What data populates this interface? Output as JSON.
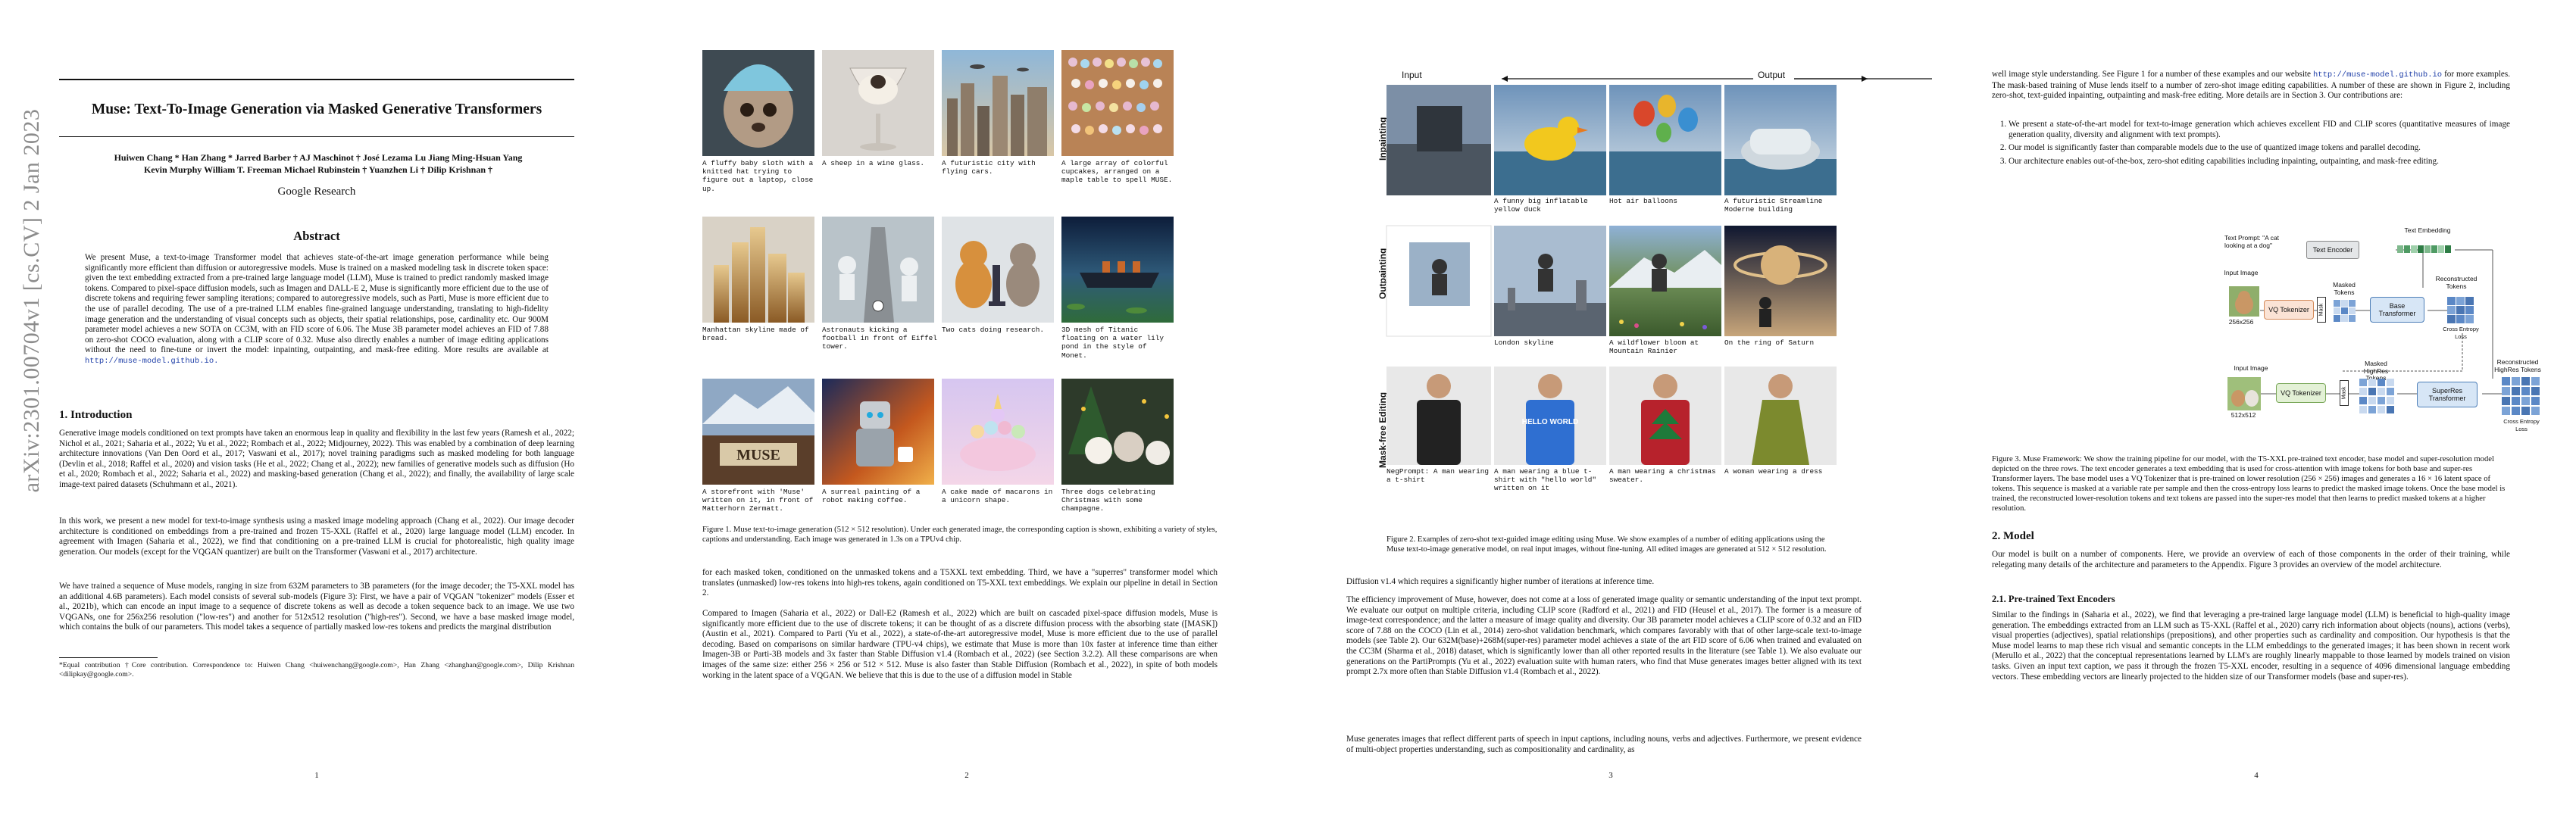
{
  "arxiv_stamp": "arXiv:2301.00704v1  [cs.CV]  2 Jan 2023",
  "page1": {
    "title": "Muse: Text-To-Image Generation via Masked Generative Transformers",
    "authors_line1": "Huiwen Chang * Han Zhang * Jarred Barber † AJ Maschinot † José Lezama Lu Jiang Ming-Hsuan Yang",
    "authors_line2": "Kevin Murphy William T. Freeman Michael Rubinstein † Yuanzhen Li † Dilip Krishnan †",
    "affiliation": "Google Research",
    "abstract_heading": "Abstract",
    "abstract": "We present Muse, a text-to-image Transformer model that achieves state-of-the-art image generation performance while being significantly more efficient than diffusion or autoregressive models. Muse is trained on a masked modeling task in discrete token space: given the text embedding extracted from a pre-trained large language model (LLM), Muse is trained to predict randomly masked image tokens. Compared to pixel-space diffusion models, such as Imagen and DALL-E 2, Muse is significantly more efficient due to the use of discrete tokens and requiring fewer sampling iterations; compared to autoregressive models, such as Parti, Muse is more efficient due to the use of parallel decoding. The use of a pre-trained LLM enables fine-grained language understanding, translating to high-fidelity image generation and the understanding of visual concepts such as objects, their spatial relationships, pose, cardinality etc. Our 900M parameter model achieves a new SOTA on CC3M, with an FID score of 6.06. The Muse 3B parameter model achieves an FID of 7.88 on zero-shot COCO evaluation, along with a CLIP score of 0.32. Muse also directly enables a number of image editing applications without the need to fine-tune or invert the model: inpainting, outpainting, and mask-free editing. More results are available at",
    "abstract_link": "http://muse-model.github.io.",
    "intro_heading": "1. Introduction",
    "intro_p1": "Generative image models conditioned on text prompts have taken an enormous leap in quality and flexibility in the last few years (Ramesh et al., 2022; Nichol et al., 2021; Saharia et al., 2022; Yu et al., 2022; Rombach et al., 2022; Midjourney, 2022). This was enabled by a combination of deep learning architecture innovations (Van Den Oord et al., 2017; Vaswani et al., 2017); novel training paradigms such as masked modeling for both language (Devlin et al., 2018; Raffel et al., 2020) and vision tasks (He et al., 2022; Chang et al., 2022); new families of generative models such as diffusion (Ho et al., 2020; Rombach et al., 2022; Saharia et al., 2022) and masking-based generation (Chang et al., 2022); and finally, the availability of large scale image-text paired datasets (Schuhmann et al., 2021).",
    "intro_p2": "In this work, we present a new model for text-to-image synthesis using a masked image modeling approach (Chang et al., 2022). Our image decoder architecture is conditioned on embeddings from a pre-trained and frozen T5-XXL (Raffel et al., 2020) large language model (LLM) encoder. In agreement with Imagen (Saharia et al., 2022), we find that conditioning on a pre-trained LLM is crucial for photorealistic, high quality image generation. Our models (except for the VQGAN quantizer) are built on the Transformer (Vaswani et al., 2017) architecture.",
    "intro_p3": "We have trained a sequence of Muse models, ranging in size from 632M parameters to 3B parameters (for the image decoder; the T5-XXL model has an additional 4.6B parameters). Each model consists of several sub-models (Figure 3): First, we have a pair of VQGAN \"tokenizer\" models (Esser et al., 2021b), which can encode an input image to a sequence of discrete tokens as well as decode a token sequence back to an image. We use two VQGANs, one for 256x256 resolution (\"low-res\") and another for 512x512 resolution (\"high-res\"). Second, we have a base masked image model, which contains the bulk of our parameters. This model takes a sequence of partially masked low-res tokens and predicts the marginal distribution",
    "footnote": "*Equal contribution †Core contribution. Correspondence to: Huiwen Chang <huiwenchang@google.com>, Han Zhang <zhanghan@google.com>, Dilip Krishnan <dilipkay@google.com>.",
    "page_number": "1"
  },
  "page2": {
    "tiles": [
      {
        "caption": "A fluffy baby sloth with a knitted hat trying to figure out a laptop, close up."
      },
      {
        "caption": "A sheep in a wine glass."
      },
      {
        "caption": "A futuristic city with flying cars."
      },
      {
        "caption": "A large array of colorful cupcakes, arranged on a maple table to spell MUSE."
      },
      {
        "caption": "Manhattan skyline made of bread."
      },
      {
        "caption": "Astronauts kicking a football in front of Eiffel tower."
      },
      {
        "caption": "Two cats doing research."
      },
      {
        "caption": "3D mesh of Titanic floating on a water lily pond in the style of Monet."
      },
      {
        "caption": "A storefront with 'Muse' written on it, in front of Matterhorn Zermatt."
      },
      {
        "caption": "A surreal painting of a robot making coffee."
      },
      {
        "caption": "A cake made of macarons in a unicorn shape."
      },
      {
        "caption": "Three dogs celebrating Christmas with some champagne."
      }
    ],
    "muse_sign": "MUSE",
    "figure_caption": "Figure 1. Muse text-to-image generation (512 × 512 resolution). Under each generated image, the corresponding caption is shown, exhibiting a variety of styles, captions and understanding. Each image was generated in 1.3s on a TPUv4 chip.",
    "body_p1": "for each masked token, conditioned on the unmasked tokens and a T5XXL text embedding. Third, we have a \"superres\" transformer model which translates (unmasked) low-res tokens into high-res tokens, again conditioned on T5-XXL text embeddings. We explain our pipeline in detail in Section 2.",
    "body_p2": "Compared to Imagen (Saharia et al., 2022) or Dall-E2 (Ramesh et al., 2022) which are built on cascaded pixel-space diffusion models, Muse is significantly more efficient due to the use of discrete tokens; it can be thought of as a discrete diffusion process with the absorbing state ([MASK]) (Austin et al., 2021). Compared to Parti (Yu et al., 2022), a state-of-the-art autoregressive model, Muse is more efficient due to the use of parallel decoding. Based on comparisons on similar hardware (TPU-v4 chips), we estimate that Muse is more than 10x faster at inference time than either Imagen-3B or Parti-3B models and 3x faster than Stable Diffusion v1.4 (Rombach et al., 2022) (see Section 3.2.2). All these comparisons are when images of the same size: either 256 × 256 or 512 × 512. Muse is also faster than Stable Diffusion (Rombach et al., 2022), in spite of both models working in the latent space of a VQGAN. We believe that this is due to the use of a diffusion model in Stable",
    "page_number": "2"
  },
  "page3": {
    "input_label": "Input",
    "output_label": "Output",
    "row_labels": [
      "Inpainting",
      "Outpainting",
      "Mask-free Editing"
    ],
    "row1_captions": [
      "",
      "A funny big inflatable yellow duck",
      "Hot air balloons",
      "A futuristic Streamline Moderne building"
    ],
    "row2_captions": [
      "",
      "London skyline",
      "A wildflower bloom at Mountain Rainier",
      "On the ring of Saturn"
    ],
    "row3_captions": [
      "NegPrompt: A man wearing a t-shirt",
      "A man wearing a blue t-shirt with \"hello world\" written on it",
      "A man wearing a christmas sweater.",
      "A woman wearing a dress"
    ],
    "hello_shirt": "HELLO WORLD",
    "figure_caption": "Figure 2. Examples of zero-shot text-guided image editing using Muse. We show examples of a number of editing applications using the Muse text-to-image generative model, on real input images, without fine-tuning. All edited images are generated at 512 × 512 resolution.",
    "body_p1": "Diffusion v1.4 which requires a significantly higher number of iterations at inference time.",
    "body_p2": "The efficiency improvement of Muse, however, does not come at a loss of generated image quality or semantic understanding of the input text prompt. We evaluate our output on multiple criteria, including CLIP score (Radford et al., 2021) and FID (Heusel et al., 2017). The former is a measure of image-text correspondence; and the latter a measure of image quality and diversity. Our 3B parameter model achieves a CLIP score of 0.32 and an FID score of 7.88 on the COCO (Lin et al., 2014) zero-shot validation benchmark, which compares favorably with that of other large-scale text-to-image models (see Table 2). Our 632M(base)+268M(super-res) parameter model achieves a state of the art FID score of 6.06 when trained and evaluated on the CC3M (Sharma et al., 2018) dataset, which is significantly lower than all other reported results in the literature (see Table 1). We also evaluate our generations on the PartiPrompts (Yu et al., 2022) evaluation suite with human raters, who find that Muse generates images better aligned with its text prompt 2.7x more often than Stable Diffusion v1.4 (Rombach et al., 2022).",
    "body_p3": "Muse generates images that reflect different parts of speech in input captions, including nouns, verbs and adjectives. Furthermore, we present evidence of multi-object properties understanding, such as compositionality and cardinality, as",
    "page_number": "3"
  },
  "page4": {
    "top_text": "well image style understanding. See Figure 1 for a number of these examples and our website",
    "top_link": "http://muse-model.github.io",
    "top_text2": "for more examples. The mask-based training of Muse lends itself to a number of zero-shot image editing capabilities. A number of these are shown in Figure 2, including zero-shot, text-guided inpainting, outpainting and mask-free editing. More details are in Section 3. Our contributions are:",
    "contributions": [
      "We present a state-of-the-art model for text-to-image generation which achieves excellent FID and CLIP scores (quantitative measures of image generation quality, diversity and alignment with text prompts).",
      "Our model is significantly faster than comparable models due to the use of quantized image tokens and parallel decoding.",
      "Our architecture enables out-of-the-box, zero-shot editing capabilities including inpainting, outpainting, and mask-free editing."
    ],
    "diagram": {
      "text_prompt": "Text Prompt: \"A cat looking at a dog\"",
      "text_encoder": "Text Encoder",
      "text_embedding": "Text Embedding",
      "input_image": "Input Image",
      "size_256": "256x256",
      "vq_tokenizer": "VQ Tokenizer",
      "mask": "Mask",
      "masked_tokens": "Masked Tokens",
      "base_transformer": "Base Transformer",
      "reconstructed_tokens": "Reconstructed Tokens",
      "cross_entropy": "Cross Entropy Loss",
      "input_image_2": "Input Image",
      "size_512": "512x512",
      "masked_highres": "Masked HighRes Tokens",
      "superres_transformer": "SuperRes Transformer",
      "reconstructed_highres": "Reconstructed HighRes Tokens"
    },
    "figure_caption": "Figure 3. Muse Framework: We show the training pipeline for our model, with the T5-XXL pre-trained text encoder, base model and super-resolution model depicted on the three rows. The text encoder generates a text embedding that is used for cross-attention with image tokens for both base and super-res Transformer layers. The base model uses a VQ Tokenizer that is pre-trained on lower resolution (256 × 256) images and generates a 16 × 16 latent space of tokens. This sequence is masked at a variable rate per sample and then the cross-entropy loss learns to predict the masked image tokens. Once the base model is trained, the reconstructed lower-resolution tokens and text tokens are passed into the super-res model that then learns to predict masked tokens at a higher resolution.",
    "model_heading": "2. Model",
    "model_p": "Our model is built on a number of components. Here, we provide an overview of each of those components in the order of their training, while relegating many details of the architecture and parameters to the Appendix. Figure 3 provides an overview of the model architecture.",
    "sub_heading": "2.1. Pre-trained Text Encoders",
    "sub_p": "Similar to the findings in (Saharia et al., 2022), we find that leveraging a pre-trained large language model (LLM) is beneficial to high-quality image generation. The embeddings extracted from an LLM such as T5-XXL (Raffel et al., 2020) carry rich information about objects (nouns), actions (verbs), visual properties (adjectives), spatial relationships (prepositions), and other properties such as cardinality and composition. Our hypothesis is that the Muse model learns to map these rich visual and semantic concepts in the LLM embeddings to the generated images; it has been shown in recent work (Merullo et al., 2022) that the conceptual representations learned by LLM's are roughly linearly mappable to those learned by models trained on vision tasks. Given an input text caption, we pass it through the frozen T5-XXL encoder, resulting in a sequence of 4096 dimensional language embedding vectors. These embedding vectors are linearly projected to the hidden size of our Transformer models (base and super-res).",
    "page_number": "4"
  }
}
